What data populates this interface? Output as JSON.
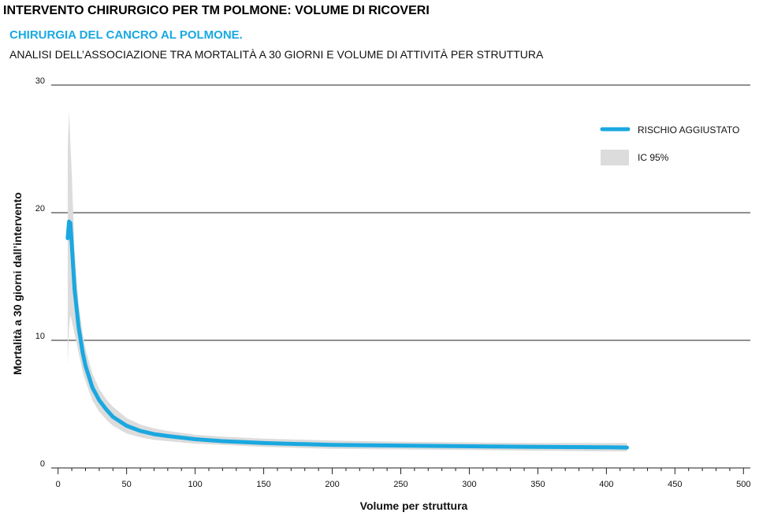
{
  "header": {
    "title": "INTERVENTO CHIRURGICO PER TM POLMONE: VOLUME DI RICOVERI",
    "subtitle": "CHIRURGIA DEL CANCRO AL POLMONE.",
    "description": "ANALISI DELL’ASSOCIAZIONE TRA MORTALITÀ A 30 GIORNI E VOLUME DI ATTIVITÀ PER STRUTTURA"
  },
  "colors": {
    "line": "#1aa8e0",
    "band": "#dcdcdc",
    "grid": "#222222",
    "text": "#111111"
  },
  "chart_data": {
    "type": "line",
    "xlabel": "Volume per struttura",
    "ylabel": "Mortalità a 30 giorni dall’intervento",
    "xlim": [
      -5,
      505
    ],
    "ylim": [
      0,
      30
    ],
    "x_ticks": [
      0,
      50,
      100,
      150,
      200,
      250,
      300,
      350,
      400,
      450,
      500
    ],
    "y_ticks": [
      0,
      10,
      20,
      30
    ],
    "x_minor_step": 10,
    "grid": "horizontal",
    "legend_position": "top-right",
    "series": [
      {
        "name": "RISCHIO AGGIUSTATO",
        "x": [
          7,
          8,
          9,
          10,
          12,
          15,
          18,
          20,
          25,
          30,
          35,
          40,
          50,
          60,
          70,
          80,
          100,
          120,
          150,
          200,
          250,
          300,
          350,
          400,
          415
        ],
        "y": [
          18.0,
          19.3,
          19.2,
          17.5,
          14.0,
          11.0,
          9.0,
          8.0,
          6.3,
          5.3,
          4.6,
          4.0,
          3.3,
          2.9,
          2.65,
          2.5,
          2.25,
          2.1,
          1.95,
          1.8,
          1.75,
          1.7,
          1.65,
          1.62,
          1.6
        ]
      }
    ],
    "confidence_band": {
      "name": "IC 95%",
      "x": [
        7,
        8,
        9,
        10,
        12,
        15,
        18,
        20,
        25,
        30,
        35,
        40,
        50,
        60,
        70,
        80,
        100,
        120,
        150,
        200,
        250,
        300,
        350,
        400,
        415
      ],
      "upper": [
        25.0,
        28.0,
        25.5,
        23.0,
        17.0,
        12.8,
        10.5,
        9.3,
        7.4,
        6.2,
        5.4,
        4.8,
        3.9,
        3.4,
        3.1,
        2.9,
        2.6,
        2.45,
        2.3,
        2.15,
        2.05,
        2.0,
        1.95,
        1.95,
        1.95
      ],
      "lower": [
        8.0,
        11.0,
        12.0,
        11.5,
        10.5,
        9.0,
        7.5,
        6.8,
        5.3,
        4.4,
        3.8,
        3.3,
        2.7,
        2.4,
        2.2,
        2.1,
        1.9,
        1.8,
        1.65,
        1.5,
        1.45,
        1.4,
        1.35,
        1.3,
        1.3
      ]
    }
  }
}
